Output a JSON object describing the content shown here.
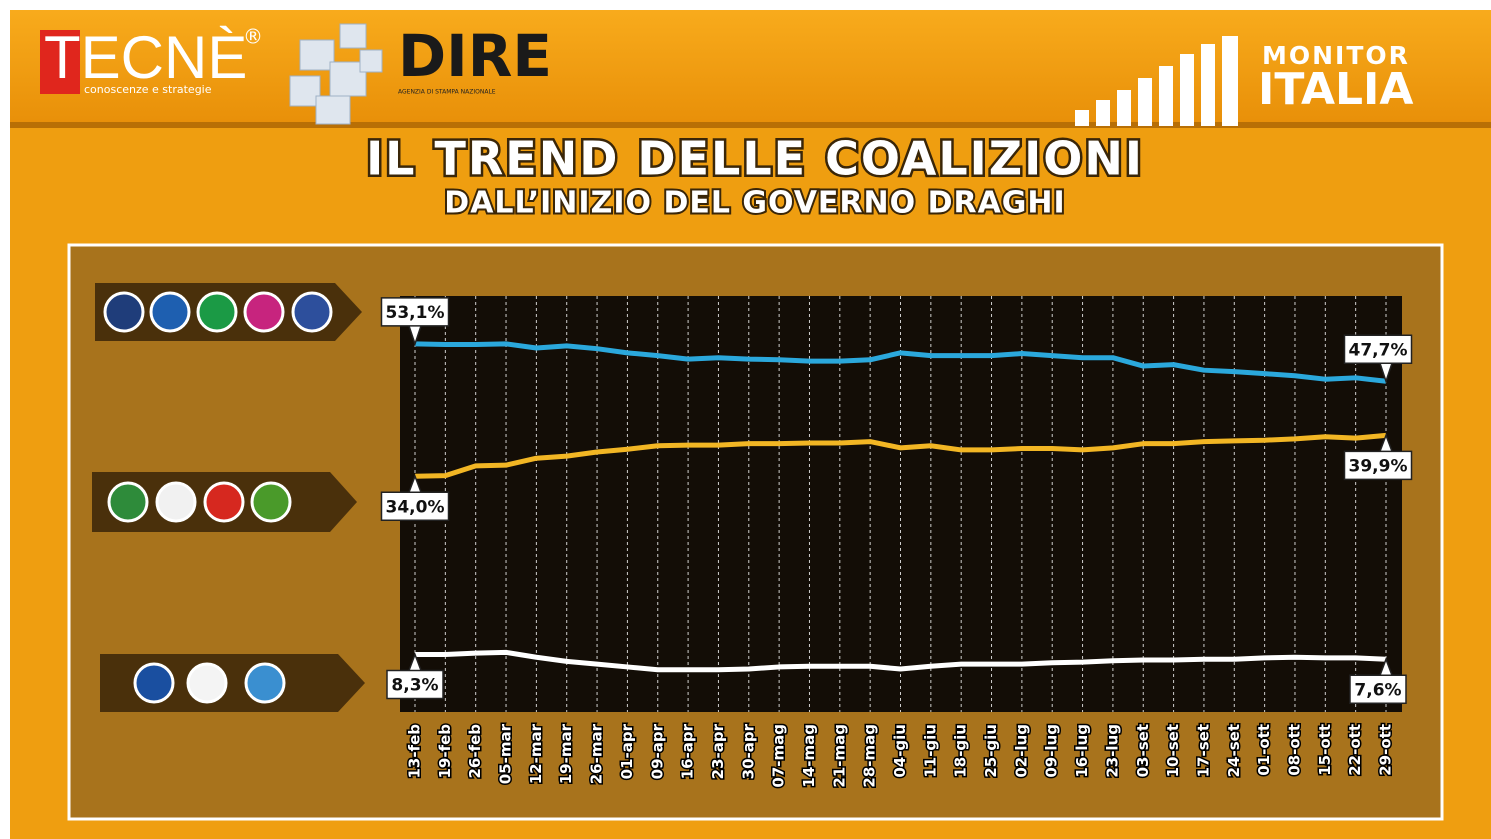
{
  "header": {
    "brand": "TECNÈ",
    "brand_mark": "®",
    "brand_tagline": "conoscenze e strategie",
    "partner": "DIRE",
    "partner_tagline": "AGENZIA DI STAMPA NAZIONALE",
    "monitor": "MONITOR",
    "italia": "ITALIA"
  },
  "chart_data": {
    "type": "line",
    "title": "IL TREND DELLE COALIZIONI",
    "subtitle": "DALL’INIZIO DEL GOVERNO DRAGHI",
    "categories": [
      "13-feb",
      "19-feb",
      "26-feb",
      "05-mar",
      "12-mar",
      "19-mar",
      "26-mar",
      "01-apr",
      "09-apr",
      "16-apr",
      "23-apr",
      "30-apr",
      "07-mag",
      "14-mag",
      "21-mag",
      "28-mag",
      "04-giu",
      "11-giu",
      "18-giu",
      "25-giu",
      "02-lug",
      "09-lug",
      "16-lug",
      "23-lug",
      "03-set",
      "10-set",
      "17-set",
      "24-set",
      "01-ott",
      "08-ott",
      "15-ott",
      "22-ott",
      "29-ott"
    ],
    "ylim": [
      0,
      60
    ],
    "grid": true,
    "series": [
      {
        "color": "#2ba8dc",
        "values": [
          53.1,
          53.0,
          53.0,
          53.1,
          52.5,
          52.8,
          52.4,
          51.8,
          51.4,
          50.9,
          51.1,
          50.9,
          50.8,
          50.6,
          50.6,
          50.8,
          51.8,
          51.4,
          51.4,
          51.4,
          51.7,
          51.4,
          51.1,
          51.1,
          49.9,
          50.1,
          49.3,
          49.1,
          48.8,
          48.5,
          48.0,
          48.2,
          47.7
        ],
        "value_labels": [
          "53,1%",
          null,
          null,
          null,
          null,
          null,
          null,
          null,
          null,
          null,
          null,
          null,
          null,
          null,
          null,
          null,
          null,
          null,
          null,
          null,
          null,
          null,
          null,
          null,
          null,
          null,
          null,
          null,
          null,
          null,
          null,
          null,
          "47,7%"
        ]
      },
      {
        "color": "#f2b624",
        "values": [
          34.0,
          34.1,
          35.5,
          35.6,
          36.6,
          36.9,
          37.5,
          37.9,
          38.4,
          38.5,
          38.5,
          38.7,
          38.7,
          38.8,
          38.8,
          39.0,
          38.1,
          38.4,
          37.8,
          37.8,
          38.0,
          38.0,
          37.8,
          38.1,
          38.7,
          38.7,
          39.0,
          39.1,
          39.2,
          39.4,
          39.7,
          39.5,
          39.9
        ],
        "value_labels": [
          "34,0%",
          null,
          null,
          null,
          null,
          null,
          null,
          null,
          null,
          null,
          null,
          null,
          null,
          null,
          null,
          null,
          null,
          null,
          null,
          null,
          null,
          null,
          null,
          null,
          null,
          null,
          null,
          null,
          null,
          null,
          null,
          null,
          "39,9%"
        ]
      },
      {
        "color": "#ffffff",
        "values": [
          8.3,
          8.3,
          8.5,
          8.6,
          7.9,
          7.3,
          6.9,
          6.5,
          6.1,
          6.1,
          6.1,
          6.2,
          6.5,
          6.6,
          6.6,
          6.6,
          6.2,
          6.6,
          6.9,
          6.9,
          6.9,
          7.1,
          7.2,
          7.4,
          7.5,
          7.5,
          7.6,
          7.6,
          7.8,
          7.9,
          7.8,
          7.8,
          7.6
        ],
        "value_labels": [
          "8,3%",
          null,
          null,
          null,
          null,
          null,
          null,
          null,
          null,
          null,
          null,
          null,
          null,
          null,
          null,
          null,
          null,
          null,
          null,
          null,
          null,
          null,
          null,
          null,
          null,
          null,
          null,
          null,
          null,
          null,
          null,
          null,
          "7,6%"
        ]
      }
    ]
  }
}
